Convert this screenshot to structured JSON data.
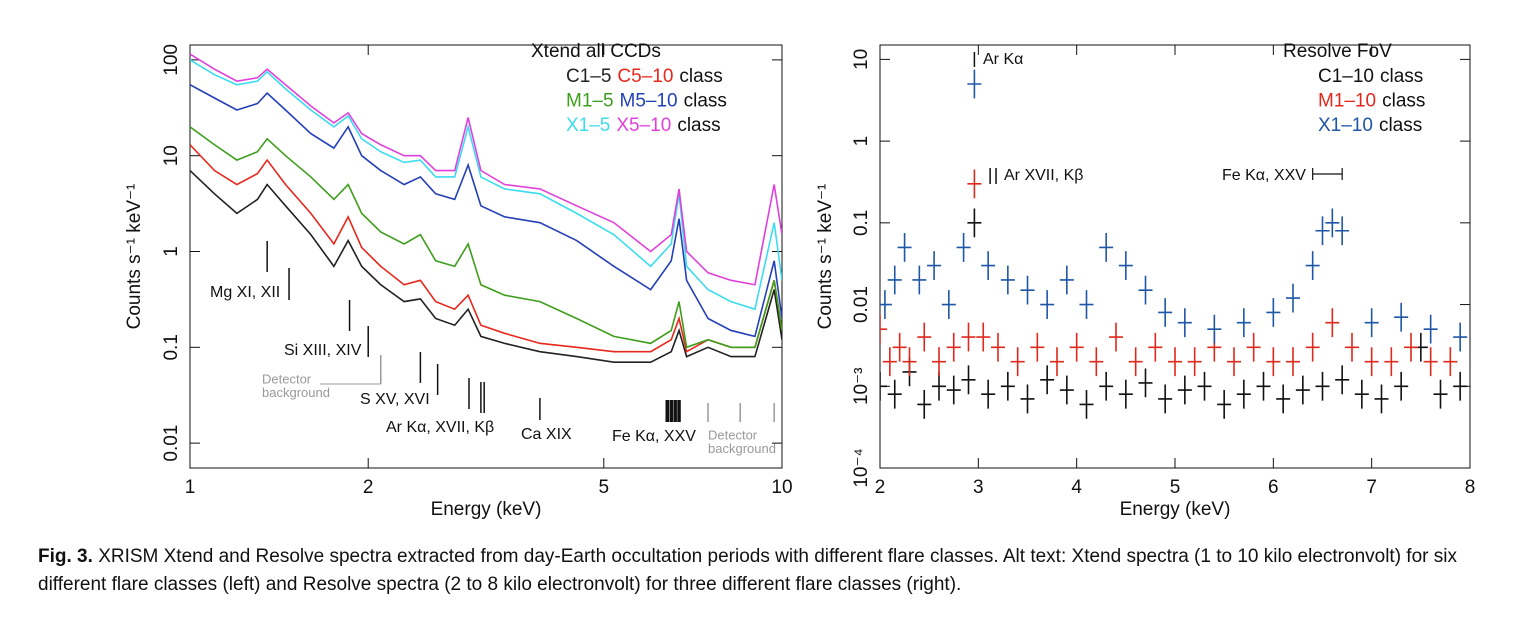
{
  "chart_data": [
    {
      "type": "line",
      "log_x": true,
      "log_y": true,
      "xlabel": "Energy (keV)",
      "ylabel": "Counts s⁻¹ keV⁻¹",
      "xlim": [
        1,
        10
      ],
      "xticks": [
        1,
        2,
        5,
        10
      ],
      "ylim": [
        0.0055,
        143
      ],
      "yticks": [
        0.01,
        0.1,
        1,
        10,
        100
      ],
      "legend_title": "Xtend all CCDs",
      "legend_suffix": "class",
      "x": [
        1,
        1.1,
        1.2,
        1.3,
        1.35,
        1.45,
        1.6,
        1.75,
        1.85,
        1.95,
        2.1,
        2.3,
        2.45,
        2.6,
        2.8,
        2.95,
        3.1,
        3.4,
        3.9,
        4.5,
        5.2,
        6.0,
        6.5,
        6.7,
        6.9,
        7.5,
        8.2,
        9.0,
        9.7,
        10
      ],
      "series": [
        {
          "name": "C1–5",
          "color": "#222222",
          "values": [
            7,
            4,
            2.5,
            3.5,
            5,
            3,
            1.5,
            0.7,
            1.3,
            0.7,
            0.45,
            0.3,
            0.32,
            0.2,
            0.17,
            0.25,
            0.13,
            0.11,
            0.09,
            0.08,
            0.07,
            0.07,
            0.09,
            0.15,
            0.08,
            0.1,
            0.08,
            0.08,
            0.4,
            0.12
          ]
        },
        {
          "name": "C5–10",
          "color": "#e8281c",
          "values": [
            13,
            7,
            5,
            6.5,
            9,
            5,
            2.5,
            1.2,
            2.3,
            1.1,
            0.7,
            0.45,
            0.5,
            0.3,
            0.25,
            0.35,
            0.17,
            0.14,
            0.11,
            0.1,
            0.09,
            0.09,
            0.12,
            0.2,
            0.09,
            0.12,
            0.1,
            0.1,
            0.5,
            0.15
          ]
        },
        {
          "name": "M1–5",
          "color": "#3f9e1c",
          "values": [
            20,
            13,
            9,
            11,
            15,
            10,
            6,
            3.5,
            5,
            2.5,
            1.6,
            1.2,
            1.5,
            0.8,
            0.7,
            1.2,
            0.45,
            0.35,
            0.3,
            0.2,
            0.13,
            0.11,
            0.15,
            0.3,
            0.1,
            0.12,
            0.1,
            0.1,
            0.5,
            0.15
          ]
        },
        {
          "name": "M5–10",
          "color": "#2440b8",
          "values": [
            55,
            40,
            30,
            35,
            45,
            30,
            17,
            12,
            20,
            10,
            7,
            5,
            6,
            4,
            3.5,
            8,
            3,
            2.3,
            2,
            1.3,
            0.7,
            0.4,
            0.8,
            2.2,
            0.5,
            0.2,
            0.15,
            0.13,
            0.8,
            0.2
          ]
        },
        {
          "name": "X1–5",
          "color": "#3cdcee",
          "values": [
            100,
            70,
            55,
            60,
            75,
            50,
            30,
            20,
            26,
            15,
            11,
            8.5,
            9,
            6,
            6,
            20,
            6,
            4.5,
            4,
            2.5,
            1.5,
            0.7,
            1.2,
            4,
            0.7,
            0.4,
            0.3,
            0.25,
            2,
            0.5
          ]
        },
        {
          "name": "X5–10",
          "color": "#e040dc",
          "values": [
            115,
            80,
            60,
            65,
            80,
            55,
            33,
            22,
            28,
            17,
            13,
            10,
            10,
            7,
            7,
            25,
            7,
            5,
            4.5,
            3,
            2,
            1,
            1.5,
            4.5,
            1,
            0.6,
            0.5,
            0.45,
            5,
            1.5
          ]
        }
      ],
      "annotations": [
        {
          "text": "Mg XI, XII",
          "lines": [
            1.35,
            1.47
          ]
        },
        {
          "text": "Si XIII, XIV",
          "lines": [
            1.86,
            2.0
          ]
        },
        {
          "text": [
            "Detector",
            "background"
          ],
          "lines": [
            2.1
          ]
        },
        {
          "text": "S XV, XVI",
          "lines": [
            2.45,
            2.62
          ]
        },
        {
          "text": "Ar Kα, XVII, Kβ",
          "lines": [
            2.96,
            3.1,
            3.14
          ]
        },
        {
          "text": "Ca XIX",
          "lines": [
            3.9
          ]
        },
        {
          "text": "Fe Kα, XXV",
          "lines": [
            6.4,
            6.5,
            6.6,
            6.7
          ]
        },
        {
          "text": [
            "Detector",
            "background"
          ],
          "lines": [
            7.5,
            8.5,
            9.7
          ]
        }
      ]
    },
    {
      "type": "scatter",
      "log_x": false,
      "log_y": true,
      "xlabel": "Energy (keV)",
      "ylabel": "Counts s⁻¹ keV⁻¹",
      "xlim": [
        2,
        8
      ],
      "xticks": [
        2,
        3,
        4,
        5,
        6,
        7,
        8
      ],
      "ylim": [
        0.0001,
        15
      ],
      "yticks": [
        {
          "value": 0.0001,
          "label": "10⁻⁴"
        },
        {
          "value": 0.001,
          "label": "10⁻³"
        },
        0.01,
        0.1,
        1,
        10
      ],
      "legend_title": "Resolve FoV",
      "legend_suffix": "class",
      "series": [
        {
          "name": "C1–10",
          "color": "#111111",
          "x": [
            2.0,
            2.15,
            2.3,
            2.45,
            2.6,
            2.75,
            2.9,
            2.96,
            3.1,
            3.3,
            3.5,
            3.7,
            3.9,
            4.1,
            4.3,
            4.5,
            4.7,
            4.9,
            5.1,
            5.3,
            5.5,
            5.7,
            5.9,
            6.1,
            6.3,
            6.5,
            6.7,
            6.9,
            7.1,
            7.3,
            7.5,
            7.7,
            7.9
          ],
          "values": [
            0.001,
            0.0008,
            0.0015,
            0.0006,
            0.001,
            0.0009,
            0.0012,
            0.1,
            0.0008,
            0.001,
            0.0007,
            0.0012,
            0.0009,
            0.0006,
            0.001,
            0.0008,
            0.0011,
            0.0007,
            0.0009,
            0.001,
            0.0006,
            0.0008,
            0.001,
            0.0007,
            0.0009,
            0.001,
            0.0012,
            0.0008,
            0.0007,
            0.001,
            0.003,
            0.0008,
            0.001
          ]
        },
        {
          "name": "M1–10",
          "color": "#e0281c",
          "x": [
            2.0,
            2.1,
            2.2,
            2.3,
            2.45,
            2.6,
            2.75,
            2.9,
            2.96,
            3.05,
            3.2,
            3.4,
            3.6,
            3.8,
            4.0,
            4.2,
            4.4,
            4.6,
            4.8,
            5.0,
            5.2,
            5.4,
            5.6,
            5.8,
            6.0,
            6.2,
            6.4,
            6.6,
            6.8,
            7.0,
            7.2,
            7.4,
            7.6,
            7.8
          ],
          "values": [
            0.005,
            0.002,
            0.003,
            0.002,
            0.004,
            0.002,
            0.003,
            0.004,
            0.3,
            0.004,
            0.003,
            0.002,
            0.003,
            0.002,
            0.003,
            0.002,
            0.004,
            0.002,
            0.003,
            0.002,
            0.002,
            0.003,
            0.002,
            0.003,
            0.002,
            0.002,
            0.003,
            0.006,
            0.003,
            0.002,
            0.002,
            0.003,
            0.002,
            0.002
          ]
        },
        {
          "name": "X1–10",
          "color": "#1e56a8",
          "x": [
            2.05,
            2.15,
            2.25,
            2.4,
            2.55,
            2.7,
            2.85,
            2.96,
            3.1,
            3.3,
            3.5,
            3.7,
            3.9,
            4.1,
            4.3,
            4.5,
            4.7,
            4.9,
            5.1,
            5.4,
            5.7,
            6.0,
            6.2,
            6.4,
            6.5,
            6.6,
            6.7,
            7.0,
            7.3,
            7.6,
            7.9
          ],
          "values": [
            0.01,
            0.02,
            0.05,
            0.02,
            0.03,
            0.01,
            0.05,
            5,
            0.03,
            0.02,
            0.015,
            0.01,
            0.02,
            0.01,
            0.05,
            0.03,
            0.015,
            0.008,
            0.006,
            0.005,
            0.006,
            0.008,
            0.012,
            0.03,
            0.08,
            0.1,
            0.08,
            0.006,
            0.007,
            0.005,
            0.004
          ]
        }
      ],
      "annotations": [
        {
          "text": "Ar Kα",
          "lines": [
            2.96
          ]
        },
        {
          "text": "Ar XVII, Kβ",
          "lines": [
            3.12,
            3.18
          ]
        },
        {
          "text": "Fe Kα, XXV",
          "lines": [
            6.4,
            6.7
          ]
        }
      ]
    }
  ],
  "caption": {
    "label": "Fig. 3.",
    "text": "XRISM Xtend and Resolve spectra extracted from day-Earth occultation periods with different flare classes. Alt text: Xtend spectra (1 to 10 kilo electronvolt) for six different flare classes (left) and Resolve spectra (2 to 8 kilo electronvolt) for three different flare classes (right)."
  }
}
